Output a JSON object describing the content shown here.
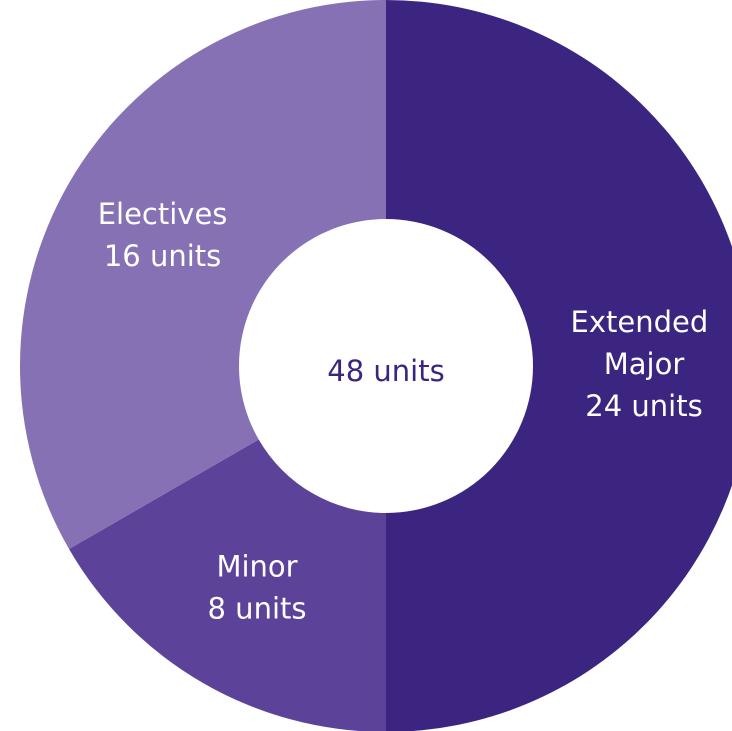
{
  "chart_data": {
    "type": "donut",
    "categories": [
      "Extended Major",
      "Minor",
      "Electives"
    ],
    "values": [
      24,
      8,
      16
    ],
    "value_labels": [
      "24 units",
      "8 units",
      "16 units"
    ],
    "colors": [
      "#3c2580",
      "#5d4299",
      "#8571b4"
    ],
    "center_label": "48 units"
  }
}
